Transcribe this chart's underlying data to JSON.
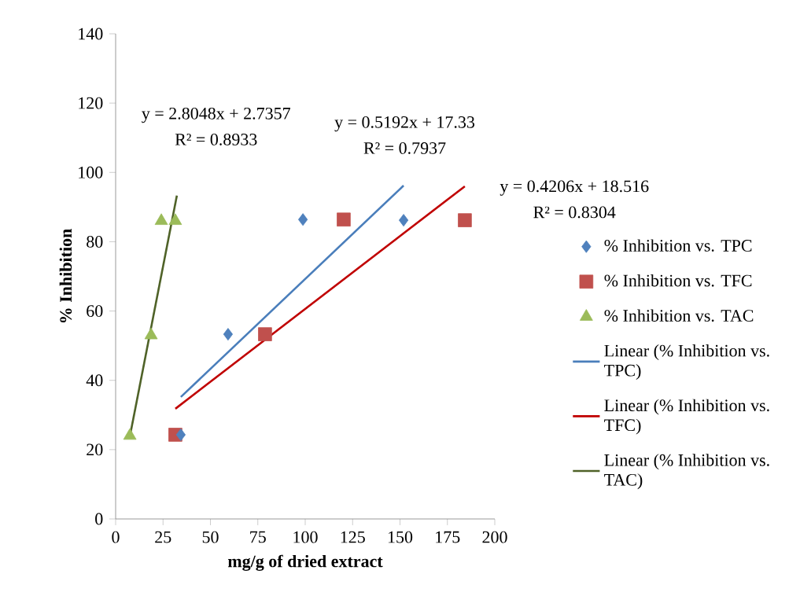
{
  "chart_data": {
    "type": "scatter",
    "xlabel": "mg/g of dried extract",
    "ylabel": "% Inhibition",
    "xlim": [
      0,
      200
    ],
    "xticks": [
      0,
      25,
      50,
      75,
      100,
      125,
      150,
      175,
      200
    ],
    "ylim": [
      0,
      140
    ],
    "yticks": [
      0,
      20,
      40,
      60,
      80,
      100,
      120,
      140
    ],
    "grid": false,
    "legend": "right",
    "annotations": [
      "y = 2.8048x + 2.7357",
      "R² = 0.8933",
      "y = 0.5192x + 17.33",
      "R² = 0.7937",
      "y = 0.4206x + 18.516",
      "R² = 0.8304"
    ],
    "series": [
      {
        "name": "% Inhibition vs. TPC",
        "marker": "diamond",
        "color": "#4f81bd",
        "x": [
          34.4,
          59.3,
          98.8,
          151.9
        ],
        "values": [
          24.3,
          53.3,
          86.4,
          86.2
        ]
      },
      {
        "name": "% Inhibition vs. TFC",
        "marker": "square",
        "color": "#c0504d",
        "x": [
          31.5,
          78.8,
          120.3,
          184.2
        ],
        "values": [
          24.3,
          53.3,
          86.4,
          86.2
        ]
      },
      {
        "name": "% Inhibition vs. TAC",
        "marker": "triangle",
        "color": "#9bbb59",
        "x": [
          7.5,
          18.7,
          24.1,
          31.5
        ],
        "values": [
          24,
          53,
          86,
          86
        ]
      },
      {
        "name": "Linear (% Inhibition vs. TPC)",
        "type": "line",
        "marker": "none",
        "line_style": "solid",
        "color": "#4a7ebb",
        "x": [
          34.4,
          151.9
        ],
        "values": [
          35.2,
          96.2
        ]
      },
      {
        "name": "Linear (% Inhibition vs. TFC)",
        "type": "line",
        "marker": "none",
        "line_style": "solid",
        "color": "#c00000",
        "x": [
          31.5,
          184.2
        ],
        "values": [
          31.8,
          96.0
        ]
      },
      {
        "name": "Linear (% Inhibition vs. TAC)",
        "type": "line",
        "marker": "none",
        "line_style": "solid",
        "color": "#4f6228",
        "x": [
          7.5,
          32.3
        ],
        "values": [
          23.8,
          93.3
        ]
      }
    ]
  }
}
